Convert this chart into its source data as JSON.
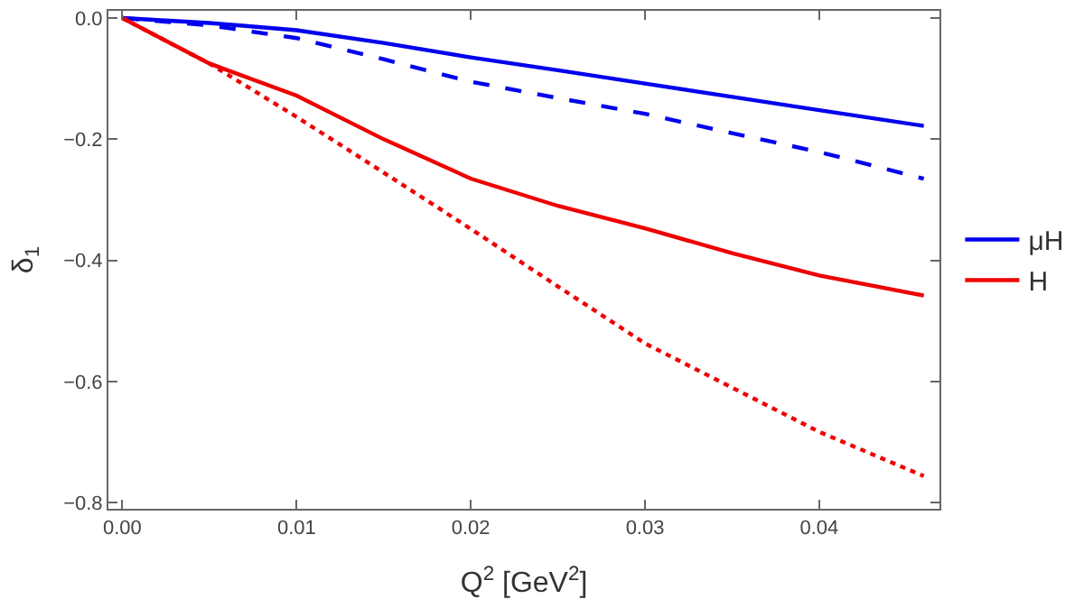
{
  "chart_data": {
    "type": "line",
    "xlabel": "Q$^{2}$ [GeV$^{2}$]",
    "ylabel": "δ$_{1}$",
    "x": [
      0,
      0.005,
      0.01,
      0.015,
      0.02,
      0.025,
      0.03,
      0.035,
      0.04,
      0.046
    ],
    "series": [
      {
        "name": "μH",
        "color": "#0000ee",
        "line_style": "solid",
        "values": [
          0,
          -0.008,
          -0.02,
          -0.041,
          -0.065,
          -0.086,
          -0.108,
          -0.13,
          -0.152,
          -0.178
        ]
      },
      {
        "color": "#0000ee",
        "line_style": "dashed",
        "values": [
          0,
          -0.012,
          -0.033,
          -0.068,
          -0.105,
          -0.132,
          -0.158,
          -0.19,
          -0.221,
          -0.265
        ]
      },
      {
        "name": "H",
        "color": "#ee0000",
        "line_style": "solid",
        "values": [
          0,
          -0.075,
          -0.128,
          -0.2,
          -0.265,
          -0.31,
          -0.347,
          -0.388,
          -0.425,
          -0.458
        ]
      },
      {
        "color": "#ee0000",
        "line_style": "dotted",
        "values": [
          0,
          -0.075,
          -0.163,
          -0.255,
          -0.348,
          -0.443,
          -0.537,
          -0.61,
          -0.683,
          -0.756
        ]
      }
    ],
    "xlim": [
      -0.0008,
      0.0469
    ],
    "xticks": [
      {
        "value": 0,
        "label": "0.00"
      },
      {
        "value": 0.01,
        "label": "0.01"
      },
      {
        "value": 0.02,
        "label": "0.02"
      },
      {
        "value": 0.03,
        "label": "0.03"
      },
      {
        "value": 0.04,
        "label": "0.04"
      }
    ],
    "ylim": [
      -0.81,
      0.012
    ],
    "yticks": [
      {
        "value": -0.8,
        "label": "−0.8"
      },
      {
        "value": -0.6,
        "label": "−0.6"
      },
      {
        "value": -0.4,
        "label": "−0.4"
      },
      {
        "value": -0.2,
        "label": "−0.2"
      },
      {
        "value": 0,
        "label": "0.0"
      }
    ],
    "grid": false,
    "legend": "right",
    "marker": "none"
  }
}
